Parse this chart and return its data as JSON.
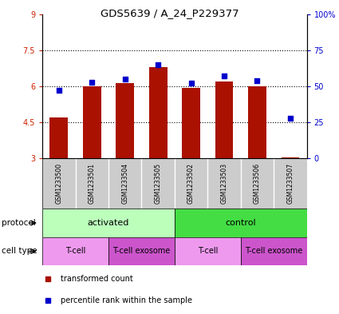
{
  "title": "GDS5639 / A_24_P229377",
  "samples": [
    "GSM1233500",
    "GSM1233501",
    "GSM1233504",
    "GSM1233505",
    "GSM1233502",
    "GSM1233503",
    "GSM1233506",
    "GSM1233507"
  ],
  "transformed_counts": [
    4.7,
    6.0,
    6.15,
    6.8,
    5.95,
    6.2,
    6.0,
    3.05
  ],
  "percentile_ranks": [
    47,
    53,
    55,
    65,
    52,
    57,
    54,
    28
  ],
  "bar_bottom": 3.0,
  "ylim": [
    3.0,
    9.0
  ],
  "yticks": [
    3,
    4.5,
    6,
    7.5,
    9
  ],
  "ytick_labels": [
    "3",
    "4.5",
    "6",
    "7.5",
    "9"
  ],
  "right_yticks": [
    0,
    25,
    50,
    75,
    100
  ],
  "right_ytick_labels": [
    "0",
    "25",
    "50",
    "75",
    "100%"
  ],
  "left_axis_color": "#cc2200",
  "right_axis_color": "#0000cc",
  "bar_color": "#aa1100",
  "dot_color": "#0000cc",
  "protocol_groups": [
    {
      "label": "activated",
      "start": 0,
      "end": 4,
      "color": "#bbffbb"
    },
    {
      "label": "control",
      "start": 4,
      "end": 8,
      "color": "#44dd44"
    }
  ],
  "cell_type_groups": [
    {
      "label": "T-cell",
      "start": 0,
      "end": 2,
      "color": "#ee99ee"
    },
    {
      "label": "T-cell exosome",
      "start": 2,
      "end": 4,
      "color": "#cc55cc"
    },
    {
      "label": "T-cell",
      "start": 4,
      "end": 6,
      "color": "#ee99ee"
    },
    {
      "label": "T-cell exosome",
      "start": 6,
      "end": 8,
      "color": "#cc55cc"
    }
  ],
  "legend_items": [
    {
      "label": "transformed count",
      "color": "#aa1100"
    },
    {
      "label": "percentile rank within the sample",
      "color": "#0000cc"
    }
  ],
  "sample_bg_color": "#cccccc",
  "sample_border_color": "#999999",
  "grid_color": "#000000",
  "plot_bg_color": "#ffffff",
  "label_left_protocol": "protocol",
  "label_left_celltype": "cell type"
}
